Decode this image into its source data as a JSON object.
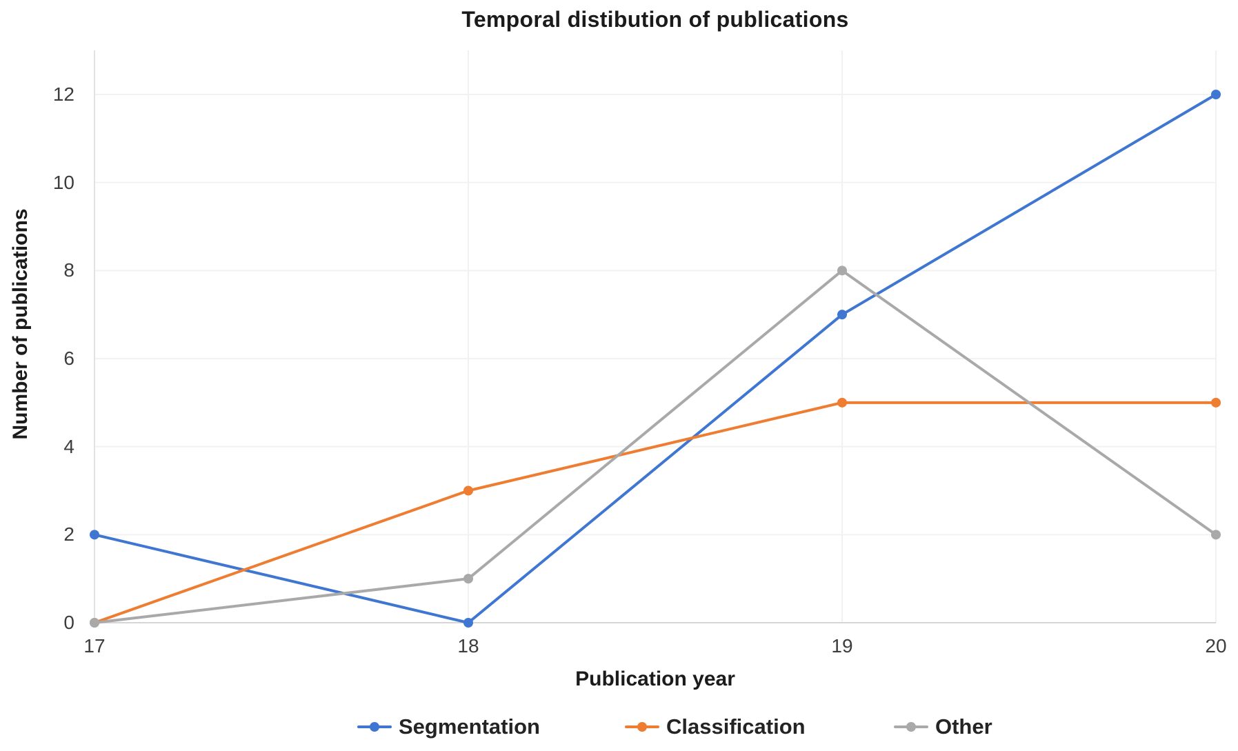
{
  "chart_data": {
    "type": "line",
    "title": "Temporal distibution of publications",
    "xlabel": "Publication year",
    "ylabel": "Number of publications",
    "x": [
      17,
      18,
      19,
      20
    ],
    "xticks": [
      "17",
      "18",
      "19",
      "20"
    ],
    "yticks": [
      0,
      2,
      4,
      6,
      8,
      10,
      12
    ],
    "ylim": [
      0,
      13
    ],
    "grid": "light horizontal lines at each y tick, light vertical lines at each x tick",
    "legend_position": "bottom",
    "marker": "filled circle on every data point, line-through-dot legend swatch",
    "series": [
      {
        "name": "Segmentation",
        "color": "#3F76D2",
        "values": [
          2,
          0,
          7,
          12
        ]
      },
      {
        "name": "Classification",
        "color": "#EE7D31",
        "values": [
          0,
          3,
          5,
          5
        ]
      },
      {
        "name": "Other",
        "color": "#A9A9A9",
        "values": [
          0,
          1,
          8,
          2
        ]
      }
    ],
    "colors": {
      "background": "#ffffff",
      "gridline": "#f2f2f2",
      "vertical_gridline": "#f1f1f1",
      "x_axis_line": "#d6d6d6",
      "y_axis_line": "#e2e2e2",
      "tick_text": "#3d3d3d",
      "title_text": "#1b1b1b"
    }
  }
}
